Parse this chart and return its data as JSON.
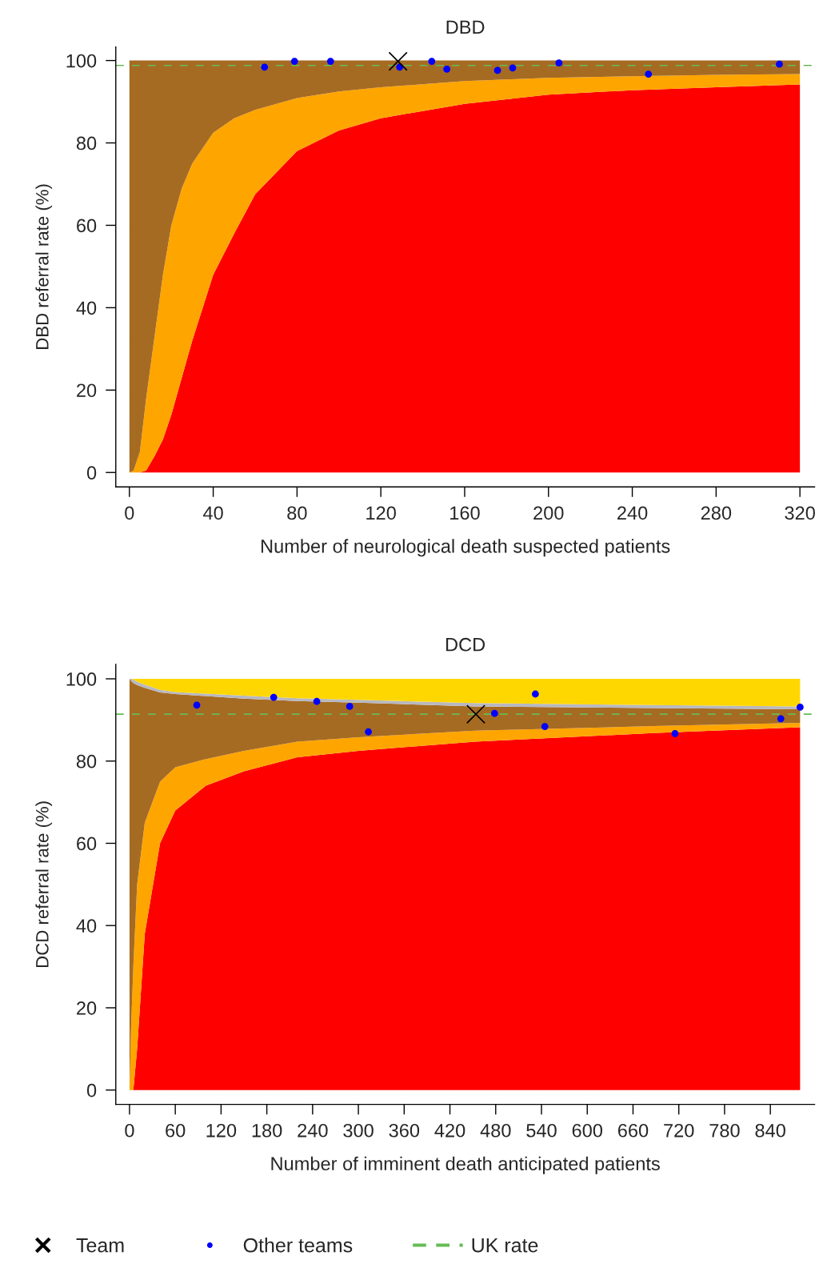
{
  "chart_data": [
    {
      "type": "area",
      "stacked": true,
      "title": "DBD",
      "xlabel": "Number of neurological death suspected patients",
      "ylabel": "DBD referral rate (%)",
      "xlim": [
        -6.5,
        327
      ],
      "xticks": [
        0,
        40,
        80,
        120,
        160,
        200,
        240,
        280,
        320
      ],
      "ylim": [
        -3.5,
        103.3
      ],
      "yticks": [
        0,
        20,
        40,
        60,
        80,
        100
      ],
      "grid": false,
      "legend": false,
      "x": [
        0,
        2,
        5,
        8,
        12,
        16,
        20,
        25,
        30,
        40,
        50,
        60,
        80,
        100,
        120,
        160,
        200,
        240,
        280,
        320
      ],
      "series": [
        {
          "color": "#ff0000",
          "values": [
            0,
            0,
            0,
            0.5,
            4,
            8,
            14,
            23,
            32,
            48,
            58,
            67.5,
            78,
            83,
            86,
            89.5,
            91.7,
            92.8,
            93.5,
            94.2
          ]
        },
        {
          "color": "#ffa500",
          "values": [
            0,
            0.5,
            5,
            17.5,
            29,
            40,
            46,
            46,
            43,
            34.5,
            28,
            20.5,
            12.9,
            9.5,
            7.5,
            5.5,
            4.1,
            3.4,
            3,
            2.5
          ]
        },
        {
          "color": "#a66b22",
          "values": [
            100,
            99.5,
            95,
            82,
            67,
            52,
            40,
            31,
            25,
            17.5,
            14,
            12,
            9.1,
            7.5,
            6.5,
            5,
            4.2,
            3.8,
            3.5,
            3.3
          ]
        },
        {
          "type": "scatter",
          "marker": "circle",
          "color": "#0000ff",
          "x": [
            64.5,
            78.8,
            96,
            129,
            144.3,
            151.5,
            175.7,
            182.9,
            205,
            247.7,
            310.2
          ],
          "values": [
            98.4,
            99.8,
            99.8,
            98.4,
            99.8,
            97.9,
            97.6,
            98.2,
            99.4,
            96.7,
            99.1
          ]
        },
        {
          "type": "scatter",
          "marker": "cross",
          "color": "#000000",
          "x": [
            128.2
          ],
          "values": [
            99.8
          ]
        }
      ],
      "ref_lines": [
        {
          "axis": "y",
          "value": 98.8,
          "color": "#66bb55",
          "line_style": "dashed"
        }
      ]
    },
    {
      "type": "area",
      "stacked": true,
      "title": "DCD",
      "xlabel": "Number of imminent death anticipated patients",
      "ylabel": "DCD referral rate (%)",
      "xlim": [
        -18,
        898
      ],
      "xticks": [
        0,
        60,
        120,
        180,
        240,
        300,
        360,
        420,
        480,
        540,
        600,
        660,
        720,
        780,
        840
      ],
      "ylim": [
        -3.5,
        103.5
      ],
      "yticks": [
        0,
        20,
        40,
        60,
        80,
        100
      ],
      "grid": false,
      "legend": "bottom",
      "x": [
        0,
        2,
        5,
        10,
        20,
        40,
        60,
        100,
        150,
        220,
        300,
        453,
        686,
        879
      ],
      "series": [
        {
          "color": "#ff0000",
          "values": [
            0,
            0,
            0,
            10,
            38,
            60,
            68,
            74,
            77.5,
            80.9,
            82.5,
            84.7,
            86.8,
            88.2
          ]
        },
        {
          "color": "#ffa500",
          "values": [
            0,
            15,
            30,
            40,
            27,
            15,
            10.5,
            6.5,
            5,
            3.8,
            3.3,
            2.7,
            1.7,
            1.1
          ]
        },
        {
          "color": "#a66b22",
          "values": [
            100,
            84.5,
            69,
            48.5,
            32.8,
            21.7,
            17.8,
            15.3,
            12.7,
            9.9,
            8.4,
            5.9,
            4.4,
            3.3
          ]
        },
        {
          "color": "#b8b8c0",
          "values": [
            0,
            0.5,
            0.8,
            0.8,
            0.8,
            0.6,
            0.5,
            0.6,
            0.7,
            0.7,
            0.7,
            0.8,
            0.7,
            0.7
          ]
        },
        {
          "color": "#ffd700",
          "values": [
            0,
            0,
            0.2,
            0.7,
            1.4,
            2.7,
            3.2,
            3.6,
            4.1,
            4.7,
            5.1,
            5.9,
            6.4,
            6.7
          ]
        },
        {
          "type": "scatter",
          "name": "Other teams",
          "marker": "circle",
          "color": "#0000ff",
          "x": [
            88.2,
            189,
            245.5,
            288.6,
            313.1,
            478.5,
            532,
            544.4,
            715,
            853.7,
            879
          ],
          "values": [
            93.6,
            95.5,
            94.5,
            93.3,
            87.1,
            91.6,
            96.3,
            88.4,
            86.7,
            90.3,
            93.1
          ]
        },
        {
          "type": "scatter",
          "name": "Team",
          "marker": "cross",
          "color": "#000000",
          "x": [
            454
          ],
          "values": [
            91.4
          ]
        }
      ],
      "ref_lines": [
        {
          "axis": "y",
          "value": 91.4,
          "label": "UK rate",
          "color": "#66bb55",
          "line_style": "dashed"
        }
      ]
    }
  ]
}
